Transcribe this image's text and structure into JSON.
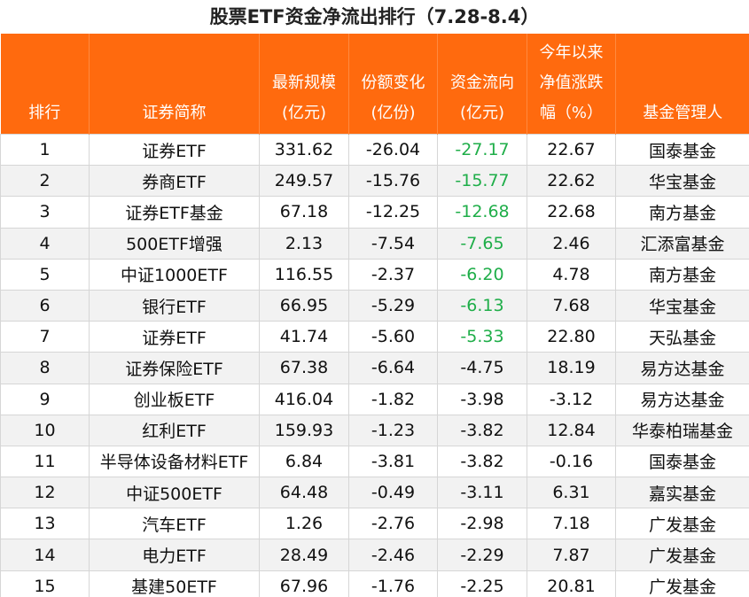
{
  "title": "股票ETF资金净流出排行（7.28-8.4）",
  "table": {
    "headers": [
      [
        "排行"
      ],
      [
        "证券简称"
      ],
      [
        "最新规模",
        "(亿元)"
      ],
      [
        "份额变化",
        "(亿份)"
      ],
      [
        "资金流向",
        "(亿元)"
      ],
      [
        "今年以来",
        "净值涨跌",
        "幅（%）"
      ],
      [
        "基金管理人"
      ]
    ],
    "rows": [
      [
        "1",
        "证券ETF",
        "331.62",
        "-26.04",
        "-27.17",
        "22.67",
        "国泰基金"
      ],
      [
        "2",
        "券商ETF",
        "249.57",
        "-15.76",
        "-15.77",
        "22.62",
        "华宝基金"
      ],
      [
        "3",
        "证券ETF基金",
        "67.18",
        "-12.25",
        "-12.68",
        "22.68",
        "南方基金"
      ],
      [
        "4",
        "500ETF增强",
        "2.13",
        "-7.54",
        "-7.65",
        "2.46",
        "汇添富基金"
      ],
      [
        "5",
        "中证1000ETF",
        "116.55",
        "-2.37",
        "-6.20",
        "4.78",
        "南方基金"
      ],
      [
        "6",
        "银行ETF",
        "66.95",
        "-5.29",
        "-6.13",
        "7.68",
        "华宝基金"
      ],
      [
        "7",
        "证券ETF",
        "41.74",
        "-5.60",
        "-5.33",
        "22.80",
        "天弘基金"
      ],
      [
        "8",
        "证券保险ETF",
        "67.38",
        "-6.64",
        "-4.75",
        "18.19",
        "易方达基金"
      ],
      [
        "9",
        "创业板ETF",
        "416.04",
        "-1.82",
        "-3.98",
        "-3.12",
        "易方达基金"
      ],
      [
        "10",
        "红利ETF",
        "159.93",
        "-1.23",
        "-3.82",
        "12.84",
        "华泰柏瑞基金"
      ],
      [
        "11",
        "半导体设备材料ETF",
        "6.84",
        "-3.81",
        "-3.82",
        "-0.16",
        "国泰基金"
      ],
      [
        "12",
        "中证500ETF",
        "64.48",
        "-0.49",
        "-3.11",
        "6.31",
        "嘉实基金"
      ],
      [
        "13",
        "汽车ETF",
        "1.26",
        "-2.76",
        "-2.98",
        "7.18",
        "广发基金"
      ],
      [
        "14",
        "电力ETF",
        "28.49",
        "-2.46",
        "-2.29",
        "7.87",
        "广发基金"
      ],
      [
        "15",
        "基建50ETF",
        "67.96",
        "-1.76",
        "-2.25",
        "20.81",
        "广发基金"
      ]
    ],
    "highlight": {
      "color": "#1fae49",
      "column": 4,
      "rows": [
        0,
        1,
        2,
        3,
        4,
        5,
        6
      ]
    }
  }
}
